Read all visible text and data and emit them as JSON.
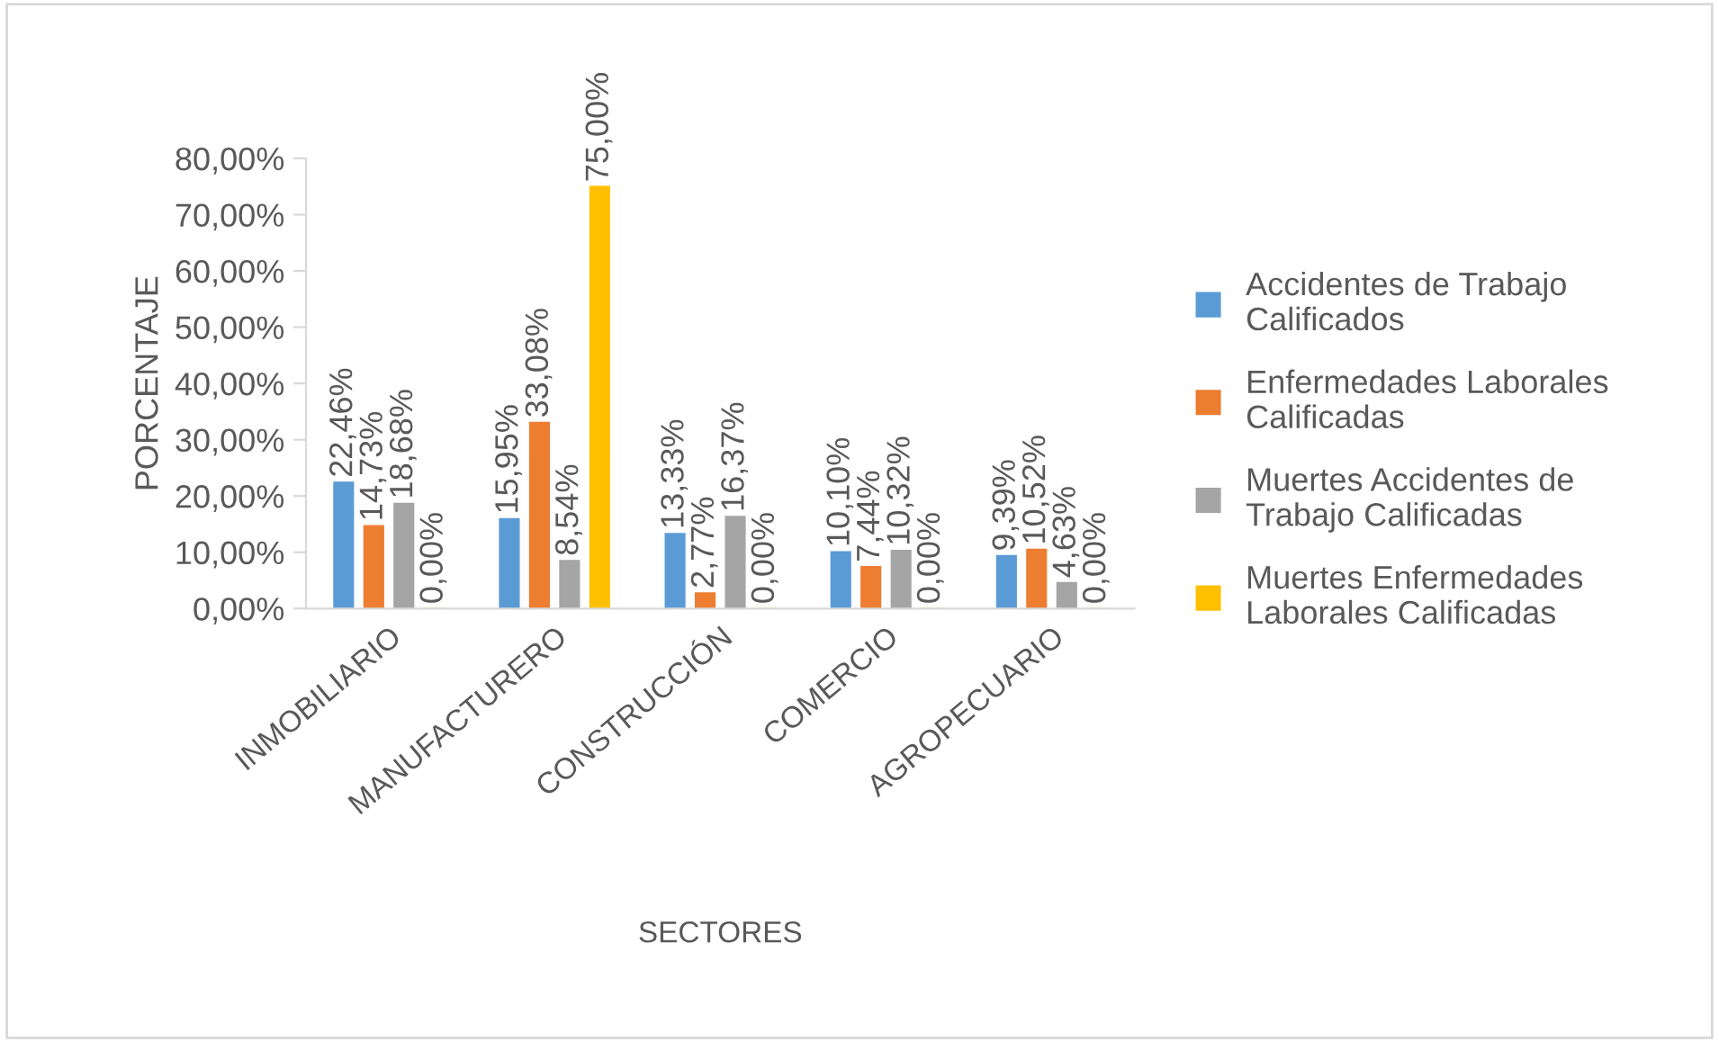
{
  "chart_data": {
    "type": "bar",
    "xlabel": "SECTORES",
    "ylabel": "PORCENTAJE",
    "categories": [
      "INMOBILIARIO",
      "MANUFACTURERO",
      "CONSTRUCCIÓN",
      "COMERCIO",
      "AGROPECUARIO"
    ],
    "series": [
      {
        "name": "Accidentes de Trabajo Calificados",
        "color": "#5b9bd5",
        "values": [
          22.46,
          15.95,
          13.33,
          10.1,
          9.39
        ],
        "value_labels": [
          "22,46%",
          "15,95%",
          "13,33%",
          "10,10%",
          "9,39%"
        ]
      },
      {
        "name": "Enfermedades Laborales Calificadas",
        "color": "#ed7d31",
        "values": [
          14.73,
          33.08,
          2.77,
          7.44,
          10.52
        ],
        "value_labels": [
          "14,73%",
          "33,08%",
          "2,77%",
          "7,44%",
          "10,52%"
        ]
      },
      {
        "name": "Muertes Accidentes de Trabajo Calificadas",
        "color": "#a5a5a5",
        "values": [
          18.68,
          8.54,
          16.37,
          10.32,
          4.63
        ],
        "value_labels": [
          "18,68%",
          "8,54%",
          "16,37%",
          "10,32%",
          "4,63%"
        ]
      },
      {
        "name": "Muertes Enfermedades Laborales Calificadas",
        "color": "#ffc000",
        "values": [
          0,
          75.0,
          0,
          0,
          0
        ],
        "value_labels": [
          "0,00%",
          "75,00%",
          "0,00%",
          "0,00%",
          "0,00%"
        ]
      }
    ],
    "ylim": [
      0,
      80
    ],
    "yticks": [
      {
        "value": 0,
        "label": "0,00%"
      },
      {
        "value": 10,
        "label": "10,00%"
      },
      {
        "value": 20,
        "label": "20,00%"
      },
      {
        "value": 30,
        "label": "30,00%"
      },
      {
        "value": 40,
        "label": "40,00%"
      },
      {
        "value": 50,
        "label": "50,00%"
      },
      {
        "value": 60,
        "label": "60,00%"
      },
      {
        "value": 70,
        "label": "70,00%"
      },
      {
        "value": 80,
        "label": "80,00%"
      }
    ],
    "grid": false,
    "legend": "right"
  }
}
